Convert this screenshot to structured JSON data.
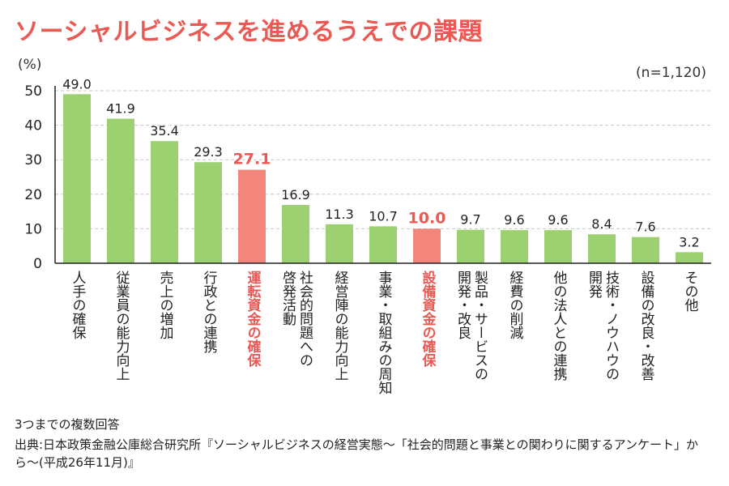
{
  "title": "ソーシャルビジネスを進めるうえでの課題",
  "unit_label": "(%)",
  "sample_size": "(n=1,120)",
  "note": "3つまでの複数回答",
  "source": "出典:日本政策金融公庫総合研究所『ソーシャルビジネスの経営実態〜「社会的問題と事業との関わりに関するアンケート」から〜(平成26年11月)』",
  "colors": {
    "bar": "#9dd070",
    "highlight_bar": "#f2867d",
    "highlight_text": "#ea5a55",
    "grid": "#c8c8c8",
    "axis": "#222222"
  },
  "chart_data": {
    "type": "bar",
    "title": "ソーシャルビジネスを進めるうえでの課題",
    "ylabel": "(%)",
    "xlabel": "",
    "ylim": [
      0,
      50
    ],
    "yticks": [
      0,
      10,
      20,
      30,
      40,
      50
    ],
    "grid": true,
    "categories": [
      "人手の確保",
      "従業員の能力向上",
      "売上の増加",
      "行政との連携",
      "運転資金の確保",
      "社会的問題への\n啓発活動",
      "経営陣の能力向上",
      "事業・取組みの周知",
      "設備資金の確保",
      "製品・サービスの\n開発・改良",
      "経費の削減",
      "他の法人との連携",
      "技術・ノウハウの\n開発",
      "設備の改良・改善",
      "その他"
    ],
    "values": [
      49.0,
      41.9,
      35.4,
      29.3,
      27.1,
      16.9,
      11.3,
      10.7,
      10.0,
      9.7,
      9.6,
      9.6,
      8.4,
      7.6,
      3.2
    ],
    "value_labels": [
      "49.0",
      "41.9",
      "35.4",
      "29.3",
      "27.1",
      "16.9",
      "11.3",
      "10.7",
      "10.0",
      "9.7",
      "9.6",
      "9.6",
      "8.4",
      "7.6",
      "3.2"
    ],
    "highlighted": [
      4,
      8
    ]
  }
}
